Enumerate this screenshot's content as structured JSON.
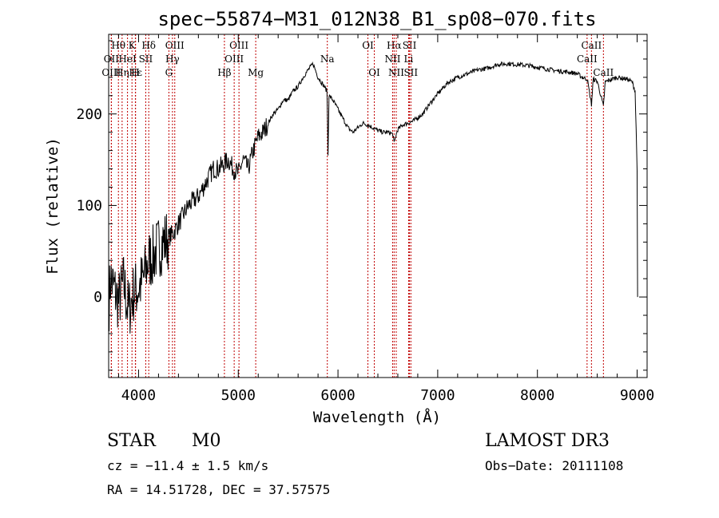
{
  "chart_data": {
    "type": "line",
    "title": "spec−55874−M31_012N38_B1_sp08−070.fits",
    "xlabel": "Wavelength (Å)",
    "ylabel": "Flux (relative)",
    "xlim": [
      3700,
      9100
    ],
    "ylim": [
      -88,
      287
    ],
    "x_ticks": [
      4000,
      5000,
      6000,
      7000,
      8000,
      9000
    ],
    "x_tick_labels": [
      "4000",
      "5000",
      "6000",
      "7000",
      "8000",
      "9000"
    ],
    "y_ticks": [
      0,
      100,
      200
    ],
    "y_tick_labels": [
      "0",
      "100",
      "200"
    ],
    "grid": false,
    "series": [
      {
        "name": "flux",
        "x": [
          3700,
          3720,
          3750,
          3800,
          3850,
          3900,
          3950,
          4000,
          4050,
          4100,
          4150,
          4200,
          4250,
          4300,
          4350,
          4400,
          4450,
          4500,
          4550,
          4600,
          4650,
          4700,
          4750,
          4800,
          4850,
          4900,
          4950,
          5000,
          5050,
          5100,
          5150,
          5200,
          5250,
          5300,
          5350,
          5400,
          5450,
          5500,
          5550,
          5600,
          5650,
          5700,
          5750,
          5800,
          5850,
          5890,
          5900,
          5910,
          5950,
          6000,
          6050,
          6100,
          6150,
          6200,
          6250,
          6300,
          6350,
          6400,
          6450,
          6500,
          6550,
          6563,
          6580,
          6600,
          6650,
          6700,
          6750,
          6800,
          6850,
          6900,
          6950,
          7000,
          7100,
          7200,
          7300,
          7400,
          7500,
          7600,
          7700,
          7800,
          7900,
          8000,
          8100,
          8200,
          8300,
          8400,
          8450,
          8500,
          8542,
          8560,
          8600,
          8662,
          8680,
          8700,
          8800,
          8900,
          8950,
          8980,
          9000,
          9005
        ],
        "y": [
          -10,
          20,
          10,
          -5,
          15,
          -15,
          5,
          10,
          20,
          40,
          45,
          55,
          60,
          65,
          70,
          80,
          90,
          100,
          105,
          110,
          120,
          130,
          140,
          140,
          145,
          150,
          140,
          135,
          150,
          140,
          160,
          175,
          180,
          190,
          200,
          205,
          215,
          215,
          225,
          230,
          240,
          248,
          255,
          240,
          232,
          225,
          155,
          220,
          215,
          205,
          195,
          185,
          180,
          185,
          190,
          188,
          185,
          182,
          180,
          180,
          178,
          168,
          176,
          183,
          188,
          190,
          192,
          196,
          200,
          208,
          215,
          222,
          234,
          240,
          244,
          248,
          250,
          254,
          255,
          254,
          253,
          251,
          249,
          247,
          246,
          244,
          240,
          238,
          210,
          238,
          236,
          208,
          235,
          236,
          240,
          238,
          235,
          225,
          140,
          0
        ]
      }
    ],
    "line_markers": [
      {
        "label": "Hθ",
        "x": 3798,
        "row": 0
      },
      {
        "label": "OII",
        "x": 3727,
        "row": 1
      },
      {
        "label": "OIII",
        "x": 3727,
        "row": 2
      },
      {
        "label": "Hη",
        "x": 3835,
        "row": 2
      },
      {
        "label": "K",
        "x": 3934,
        "row": 0
      },
      {
        "label": "HeI",
        "x": 3889,
        "row": 1
      },
      {
        "label": "Hε",
        "x": 3970,
        "row": 2
      },
      {
        "label": "H",
        "x": 3968,
        "row": 2
      },
      {
        "label": "SII",
        "x": 4072,
        "row": 1
      },
      {
        "label": "Hδ",
        "x": 4102,
        "row": 0
      },
      {
        "label": "OIII",
        "x": 4363,
        "row": 0
      },
      {
        "label": "Hγ",
        "x": 4340,
        "row": 1
      },
      {
        "label": "G",
        "x": 4304,
        "row": 2
      },
      {
        "label": "Hβ",
        "x": 4861,
        "row": 2
      },
      {
        "label": "OIII",
        "x": 5007,
        "row": 0
      },
      {
        "label": "OIII",
        "x": 4959,
        "row": 1
      },
      {
        "label": "Mg",
        "x": 5175,
        "row": 2
      },
      {
        "label": "Na",
        "x": 5893,
        "row": 1
      },
      {
        "label": "OI",
        "x": 6300,
        "row": 0
      },
      {
        "label": "OI",
        "x": 6364,
        "row": 2
      },
      {
        "label": "Hα",
        "x": 6563,
        "row": 0
      },
      {
        "label": "NII",
        "x": 6548,
        "row": 1
      },
      {
        "label": "NII",
        "x": 6584,
        "row": 2
      },
      {
        "label": "SII",
        "x": 6717,
        "row": 0
      },
      {
        "label": "Li",
        "x": 6708,
        "row": 1
      },
      {
        "label": "SII",
        "x": 6731,
        "row": 2
      },
      {
        "label": "CaII",
        "x": 8542,
        "row": 0
      },
      {
        "label": "CaII",
        "x": 8498,
        "row": 1
      },
      {
        "label": "CaII",
        "x": 8662,
        "row": 2
      }
    ]
  },
  "info": {
    "object_type": "STAR",
    "subclass": "M0",
    "survey": "LAMOST DR3",
    "cz": "cz = −11.4 ± 1.5 km/s",
    "obs_date": "Obs−Date: 20111108",
    "radec": "RA =  14.51728, DEC =  37.57575"
  }
}
